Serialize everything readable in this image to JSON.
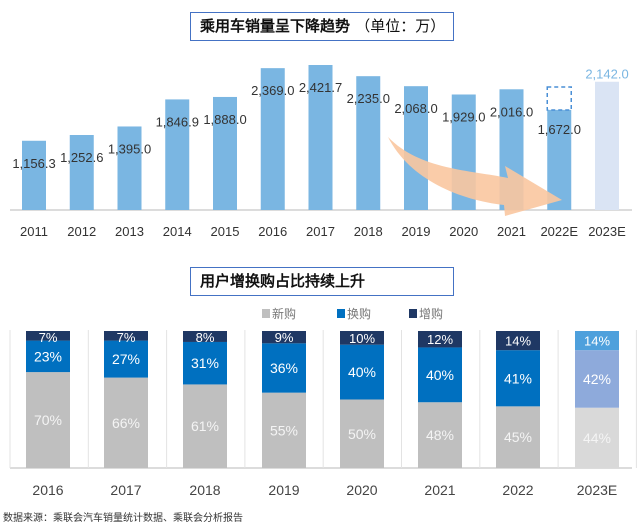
{
  "chart_data": [
    {
      "type": "bar",
      "title": "乘用车销量呈下降趋势",
      "unit_note": "（单位：万）",
      "categories": [
        "2011",
        "2012",
        "2013",
        "2014",
        "2015",
        "2016",
        "2017",
        "2018",
        "2019",
        "2020",
        "2021",
        "2022E",
        "2023E"
      ],
      "values": [
        1156.3,
        1252.6,
        1395.0,
        1846.9,
        1888.0,
        2369.0,
        2421.7,
        2235.0,
        2068.0,
        1929.0,
        2016.0,
        1672.0,
        2142.0
      ],
      "labels": [
        "1,156.3",
        "1,252.6",
        "1,395.0",
        "1,846.9",
        "1,888.0",
        "2,369.0",
        "2,421.7",
        "2,235.0",
        "2,068.0",
        "1,929.0",
        "2,016.0",
        "1,672.0",
        "2,142.0"
      ],
      "colors": {
        "bar": "#7ab6e2",
        "forecast_bar": "#dae4f4",
        "forecast_label": "#7ab6e2",
        "arrow": "#f9c6a0"
      },
      "annotations": [
        "downward trend arrow 2018→2022E",
        "dashed box above 2022E bar"
      ],
      "ylim": [
        0,
        2500
      ],
      "grid": false
    },
    {
      "type": "bar",
      "stacked": true,
      "percent": true,
      "title": "用户增换购占比持续上升",
      "categories": [
        "2016",
        "2017",
        "2018",
        "2019",
        "2020",
        "2021",
        "2022",
        "2023E"
      ],
      "series": [
        {
          "name": "新购",
          "values": [
            70,
            66,
            61,
            55,
            50,
            48,
            45,
            44
          ],
          "color": "#bfbfbf"
        },
        {
          "name": "换购",
          "values": [
            23,
            27,
            31,
            36,
            40,
            40,
            41,
            42
          ],
          "color": "#0070c0"
        },
        {
          "name": "增购",
          "values": [
            7,
            7,
            8,
            9,
            10,
            12,
            14,
            14
          ],
          "color": "#1f3864"
        }
      ],
      "forecast_colors": [
        "#d9d9d9",
        "#8eaadb",
        "#4ea0dc"
      ],
      "legend": "top",
      "ylim": [
        0,
        100
      ]
    }
  ],
  "source": "数据来源：乘联会汽车销量统计数据、乘联会分析报告"
}
